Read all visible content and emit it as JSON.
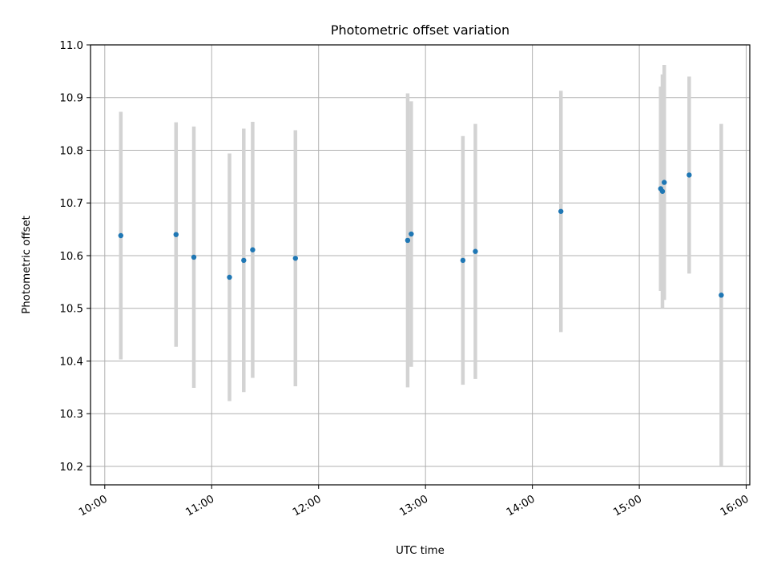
{
  "chart_data": {
    "type": "scatter",
    "title": "Photometric offset variation",
    "xlabel": "UTC time",
    "ylabel": "Photometric offset",
    "x_tick_labels": [
      "10:00",
      "11:00",
      "12:00",
      "13:00",
      "14:00",
      "15:00",
      "16:00"
    ],
    "y_tick_labels": [
      "10.2",
      "10.3",
      "10.4",
      "10.5",
      "10.6",
      "10.7",
      "10.8",
      "10.9",
      "11.0"
    ],
    "x_tick_values": [
      "10:00",
      "11:00",
      "12:00",
      "13:00",
      "14:00",
      "15:00",
      "16:00"
    ],
    "y_tick_values": [
      10.2,
      10.3,
      10.4,
      10.5,
      10.6,
      10.7,
      10.8,
      10.9,
      11.0
    ],
    "xlim": [
      "09:52",
      "16:02"
    ],
    "ylim": [
      10.165,
      11.0
    ],
    "grid": true,
    "point_color": "#1f77b4",
    "errorbar_color": "#d3d3d3",
    "points": [
      {
        "x": "10:09",
        "y": 10.638,
        "yerr": 0.235
      },
      {
        "x": "10:40",
        "y": 10.64,
        "yerr": 0.213
      },
      {
        "x": "10:50",
        "y": 10.597,
        "yerr": 0.248
      },
      {
        "x": "11:10",
        "y": 10.559,
        "yerr": 0.235
      },
      {
        "x": "11:18",
        "y": 10.591,
        "yerr": 0.25
      },
      {
        "x": "11:23",
        "y": 10.611,
        "yerr": 0.243
      },
      {
        "x": "11:47",
        "y": 10.595,
        "yerr": 0.243
      },
      {
        "x": "12:50",
        "y": 10.629,
        "yerr": 0.279
      },
      {
        "x": "12:52",
        "y": 10.641,
        "yerr": 0.252
      },
      {
        "x": "13:21",
        "y": 10.591,
        "yerr": 0.236
      },
      {
        "x": "13:28",
        "y": 10.608,
        "yerr": 0.242
      },
      {
        "x": "14:16",
        "y": 10.684,
        "yerr": 0.229
      },
      {
        "x": "15:12",
        "y": 10.727,
        "yerr": 0.194
      },
      {
        "x": "15:13",
        "y": 10.722,
        "yerr": 0.222
      },
      {
        "x": "15:14",
        "y": 10.739,
        "yerr": 0.223
      },
      {
        "x": "15:28",
        "y": 10.753,
        "yerr": 0.187
      },
      {
        "x": "15:46",
        "y": 10.525,
        "yerr": 0.325
      }
    ]
  }
}
